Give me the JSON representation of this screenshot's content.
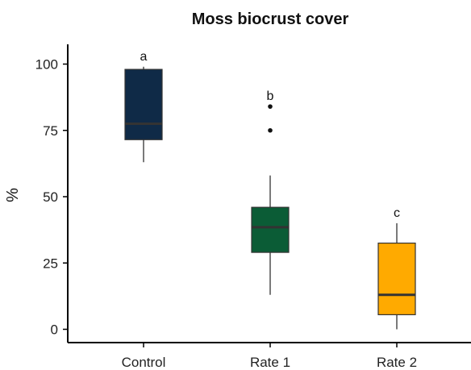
{
  "chart_data": {
    "type": "box",
    "title": "Moss biocrust cover",
    "xlabel": "",
    "ylabel": "%",
    "ylim": [
      0,
      104
    ],
    "yticks": [
      0,
      25,
      50,
      75,
      100
    ],
    "categories": [
      "Control",
      "Rate 1",
      "Rate 2"
    ],
    "boxes": [
      {
        "category": "Control",
        "whisker_low": 63,
        "q1": 71.5,
        "median": 77.5,
        "q3": 98,
        "whisker_high": 99,
        "outliers": [],
        "group_label": "a",
        "color": "#0f2a47"
      },
      {
        "category": "Rate 1",
        "whisker_low": 13,
        "q1": 29,
        "median": 38.5,
        "q3": 46,
        "whisker_high": 58,
        "outliers": [
          75,
          84
        ],
        "group_label": "b",
        "color": "#0b5c36"
      },
      {
        "category": "Rate 2",
        "whisker_low": 0,
        "q1": 5.5,
        "median": 13,
        "q3": 32.5,
        "whisker_high": 40,
        "outliers": [],
        "group_label": "c",
        "color": "#ffaa00"
      }
    ]
  }
}
